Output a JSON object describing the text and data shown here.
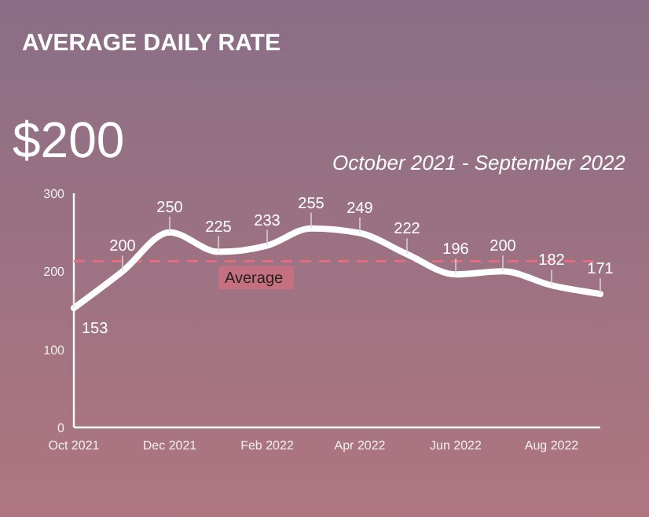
{
  "chart_data": {
    "type": "line",
    "title": "AVERAGE DAILY RATE",
    "subtitle": "$200",
    "annotations": [
      "October 2021 - September 2022"
    ],
    "x": [
      "2021-10",
      "2021-11",
      "2021-12",
      "2022-01",
      "2022-02",
      "2022-03",
      "2022-04",
      "2022-05",
      "2022-06",
      "2022-07",
      "2022-08",
      "2022-09"
    ],
    "series": [
      {
        "color": "#ffffff",
        "values": [
          153,
          200,
          250,
          225,
          233,
          255,
          249,
          222,
          196,
          200,
          182,
          171
        ]
      }
    ],
    "data_labels": true,
    "xlim": [
      "2021-10",
      "2022-09"
    ],
    "xticks": [
      {
        "value": "2021-10",
        "label": "Oct 2021"
      },
      {
        "value": "2021-12",
        "label": "Dec 2021"
      },
      {
        "value": "2022-02",
        "label": "Feb 2022"
      },
      {
        "value": "2022-04",
        "label": "Apr 2022"
      },
      {
        "value": "2022-06",
        "label": "Jun 2022"
      },
      {
        "value": "2022-08",
        "label": "Aug 2022"
      }
    ],
    "ylim": [
      0,
      300
    ],
    "yticks": [
      0,
      100,
      200,
      300
    ],
    "ref_lines": [
      {
        "axis": "y",
        "value": 213,
        "label": "Average",
        "color": "#e07080",
        "line_style": "dashed"
      }
    ],
    "grid": false
  }
}
